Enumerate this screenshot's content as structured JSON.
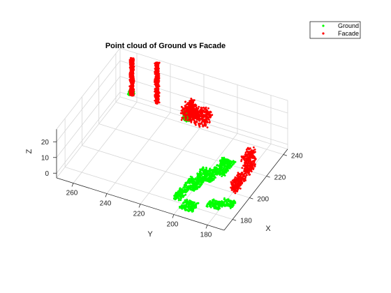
{
  "chart_data": {
    "type": "scatter",
    "projection": "3d",
    "title": "Point cloud of Ground vs Facade",
    "xlabel": "X",
    "ylabel": "Y",
    "zlabel": "Z",
    "xlim": [
      170,
      245
    ],
    "ylim": [
      170,
      270
    ],
    "zlim": [
      -3,
      28
    ],
    "xticks": [
      180,
      200,
      220,
      240
    ],
    "yticks": [
      180,
      200,
      220,
      240,
      260
    ],
    "zticks": [
      0,
      10,
      20
    ],
    "grid": true,
    "legend_position": "top-right",
    "series": [
      {
        "name": "Ground",
        "color": "#00ff00",
        "marker": "dot",
        "regions": [
          {
            "x": [
              178,
              188
            ],
            "y": [
              200,
              205
            ],
            "z": [
              0,
              1
            ]
          },
          {
            "x": [
              188,
              198
            ],
            "y": [
              196,
              204
            ],
            "z": [
              0,
              1
            ]
          },
          {
            "x": [
              198,
              208
            ],
            "y": [
              192,
              202
            ],
            "z": [
              0,
              1
            ]
          },
          {
            "x": [
              172,
              180
            ],
            "y": [
              190,
              198
            ],
            "z": [
              0,
              1
            ]
          },
          {
            "x": [
              180,
              186
            ],
            "y": [
              178,
              186
            ],
            "z": [
              0,
              1
            ]
          },
          {
            "x": [
              184,
              190
            ],
            "y": [
              173,
              180
            ],
            "z": [
              0,
              1
            ]
          },
          {
            "x": [
              206,
              220
            ],
            "y": [
              188,
              196
            ],
            "z": [
              0,
              1
            ]
          },
          {
            "x": [
              230,
              236
            ],
            "y": [
              222,
              226
            ],
            "z": [
              6,
              11
            ]
          },
          {
            "x": [
              244,
              246
            ],
            "y": [
              262,
              265
            ],
            "z": [
              0,
              3
            ]
          }
        ]
      },
      {
        "name": "Facade",
        "color": "#ff0000",
        "marker": "dot",
        "regions": [
          {
            "x": [
              228,
              236
            ],
            "y": [
              210,
              226
            ],
            "z": [
              8,
              16
            ]
          },
          {
            "x": [
              210,
              220
            ],
            "y": [
              176,
              180
            ],
            "z": [
              0,
              14
            ]
          },
          {
            "x": [
              196,
              208
            ],
            "y": [
              176,
              180
            ],
            "z": [
              0,
              6
            ]
          },
          {
            "x": [
              244,
              246
            ],
            "y": [
              262,
              264
            ],
            "z": [
              0,
              24
            ]
          },
          {
            "x": [
              244,
              246
            ],
            "y": [
              247,
              249
            ],
            "z": [
              0,
              26
            ]
          },
          {
            "x": [
              232,
              236
            ],
            "y": [
              221,
              223
            ],
            "z": [
              8,
              18
            ]
          }
        ]
      }
    ]
  }
}
